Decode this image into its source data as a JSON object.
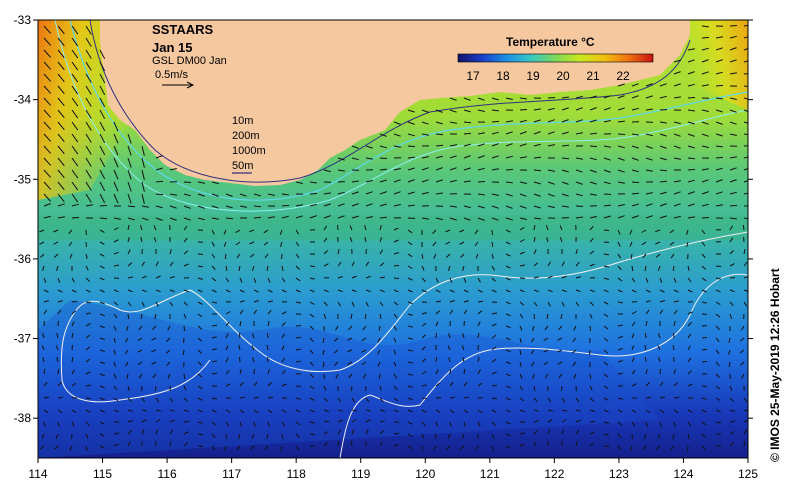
{
  "map": {
    "title": "SSTAARS",
    "date": "Jan 15",
    "dataset": "GSL DM00 Jan",
    "vector_scale_label": "0.5m/s",
    "isobaths": [
      "10m",
      "200m",
      "1000m",
      "50m"
    ],
    "lon_range": [
      114,
      125
    ],
    "lat_range": [
      -38.5,
      -33
    ],
    "lon_ticks": [
      "114",
      "115",
      "116",
      "117",
      "118",
      "119",
      "120",
      "121",
      "122",
      "123",
      "124",
      "125"
    ],
    "lat_ticks": [
      "-33",
      "-34",
      "-35",
      "-36",
      "-37",
      "-38"
    ]
  },
  "colorbar": {
    "title": "Temperature °C",
    "ticks": [
      "17",
      "18",
      "19",
      "20",
      "21",
      "22"
    ],
    "range": [
      16.5,
      23
    ],
    "colors": [
      "#10106a",
      "#1a40c8",
      "#1e90e6",
      "#38c8c0",
      "#7cd85a",
      "#c8e81e",
      "#f0c010",
      "#f07010",
      "#c81410"
    ]
  },
  "land_color": "#f5c8a0",
  "credit": "© IMOS 25-May-2019 12:26 Hobart"
}
